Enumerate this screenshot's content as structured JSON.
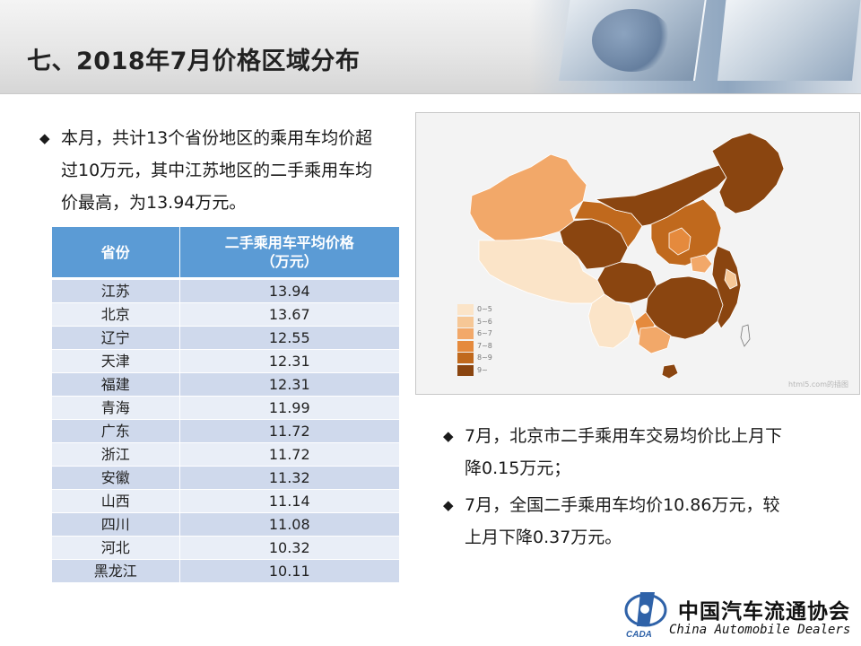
{
  "page": {
    "title": "七、2018年7月价格区域分布"
  },
  "bullets": {
    "left": "本月，共计13个省份地区的乘用车均价超过10万元，其中江苏地区的二手乘用车均价最高，为13.94万元。",
    "right": [
      "7月，北京市二手乘用车交易均价比上月下降0.15万元；",
      "7月，全国二手乘用车均价10.86万元，较上月下降0.37万元。"
    ],
    "marker": "◆"
  },
  "table": {
    "headers": [
      "省份",
      "二手乘用车平均价格（万元）"
    ],
    "rows": [
      {
        "province": "江苏",
        "price": "13.94"
      },
      {
        "province": "北京",
        "price": "13.67"
      },
      {
        "province": "辽宁",
        "price": "12.55"
      },
      {
        "province": "天津",
        "price": "12.31"
      },
      {
        "province": "福建",
        "price": "12.31"
      },
      {
        "province": "青海",
        "price": "11.99"
      },
      {
        "province": "广东",
        "price": "11.72"
      },
      {
        "province": "浙江",
        "price": "11.72"
      },
      {
        "province": "安徽",
        "price": "11.32"
      },
      {
        "province": "山西",
        "price": "11.14"
      },
      {
        "province": "四川",
        "price": "11.08"
      },
      {
        "province": "河北",
        "price": "10.32"
      },
      {
        "province": "黑龙江",
        "price": "10.11"
      }
    ]
  },
  "map": {
    "legend": [
      {
        "label": "0~5",
        "color": "#fbe4c8"
      },
      {
        "label": "5~6",
        "color": "#f6c796"
      },
      {
        "label": "6~7",
        "color": "#f2a869"
      },
      {
        "label": "7~8",
        "color": "#e58a3d"
      },
      {
        "label": "8~9",
        "color": "#c0691d"
      },
      {
        "label": "9~",
        "color": "#8a4510"
      }
    ],
    "watermark": "html5.com的插图"
  },
  "logo": {
    "cn": "中国汽车流通协会",
    "en": "China Automobile Dealers",
    "mark": "CADA"
  },
  "colors": {
    "table_header": "#5b9bd5",
    "row_odd": "#cfd9ec",
    "row_even": "#e9eef7",
    "logo_blue": "#2f62a8"
  }
}
